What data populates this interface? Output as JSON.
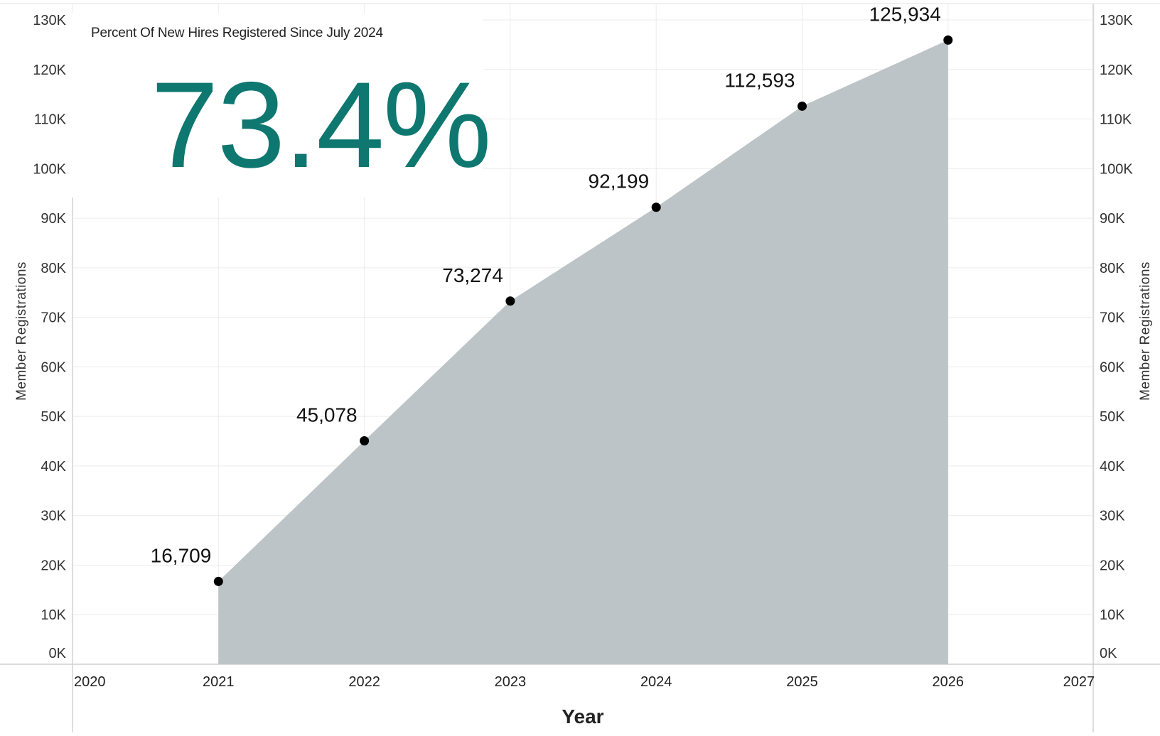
{
  "kpi": {
    "label": "Percent Of New Hires Registered Since July 2024",
    "value": "73.4%",
    "color": "#0e7770"
  },
  "chart_data": {
    "type": "area",
    "x": [
      2021,
      2022,
      2023,
      2024,
      2025,
      2026
    ],
    "series": [
      {
        "values": [
          16709,
          45078,
          73274,
          92199,
          112593,
          125934
        ],
        "data_labels": [
          "16,709",
          "45,078",
          "73,274",
          "92,199",
          "112,593",
          "125,934"
        ],
        "fill": "#bcc4c7",
        "marker": "#000000"
      }
    ],
    "xlabel": "Year",
    "ylabel_left": "Member Registrations",
    "ylabel_right": "Member Registrations",
    "xlim": [
      2020,
      2027
    ],
    "ylim": [
      0,
      130000
    ],
    "x_ticks": [
      "2020",
      "2021",
      "2022",
      "2023",
      "2024",
      "2025",
      "2026",
      "2027"
    ],
    "y_ticks": [
      "0K",
      "10K",
      "20K",
      "30K",
      "40K",
      "50K",
      "60K",
      "70K",
      "80K",
      "90K",
      "100K",
      "110K",
      "120K",
      "130K"
    ],
    "grid": true
  }
}
